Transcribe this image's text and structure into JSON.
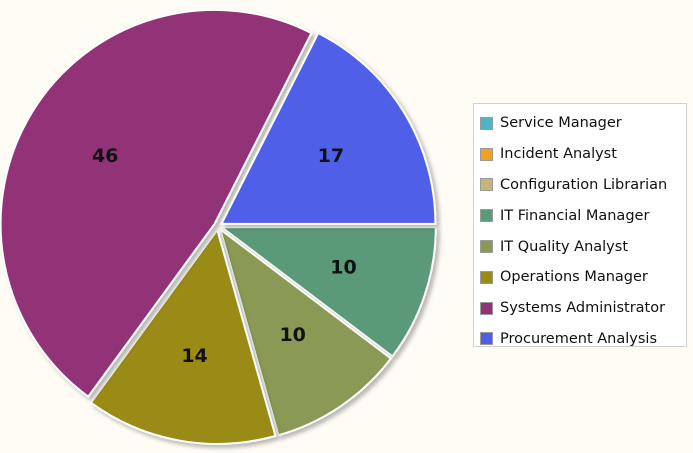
{
  "chart_data": {
    "type": "pie",
    "categories": [
      "Service Manager",
      "Incident Analyst",
      "Configuration Librarian",
      "IT Financial Manager",
      "IT Quality Analyst",
      "Operations Manager",
      "Systems Administrator",
      "Procurement Analysis"
    ],
    "values": [
      0,
      0,
      0,
      10,
      10,
      14,
      46,
      17
    ],
    "colors": [
      "#4fb4c7",
      "#f0a21e",
      "#c8b47a",
      "#5a9a78",
      "#8a9a55",
      "#9a8b12",
      "#923277",
      "#4f5ee8"
    ],
    "data_labels": [
      "",
      "",
      "",
      "10",
      "10",
      "14",
      "46",
      "17"
    ],
    "legend_position": "right"
  }
}
